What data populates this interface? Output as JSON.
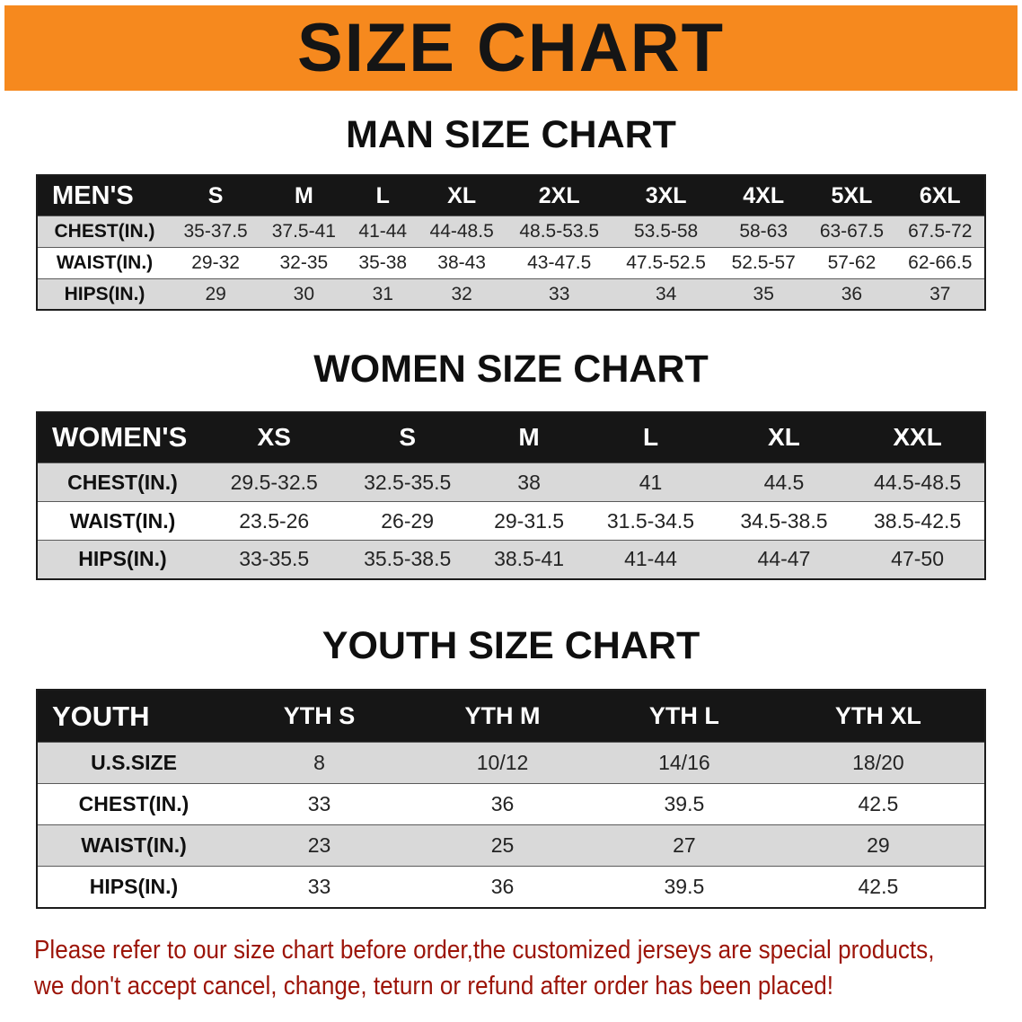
{
  "banner": {
    "title": "SIZE CHART"
  },
  "colors": {
    "banner_orange": "#F6891E",
    "table_header_black": "#161616",
    "row_stripe_gray": "#D9D9D9",
    "notice_red": "#9C1408"
  },
  "chart_data": [
    {
      "type": "table",
      "title": "MAN SIZE CHART",
      "corner_label": "MEN'S",
      "columns": [
        "S",
        "M",
        "L",
        "XL",
        "2XL",
        "3XL",
        "4XL",
        "5XL",
        "6XL"
      ],
      "rows": [
        {
          "label": "CHEST(IN.)",
          "values": [
            "35-37.5",
            "37.5-41",
            "41-44",
            "44-48.5",
            "48.5-53.5",
            "53.5-58",
            "58-63",
            "63-67.5",
            "67.5-72"
          ]
        },
        {
          "label": "WAIST(IN.)",
          "values": [
            "29-32",
            "32-35",
            "35-38",
            "38-43",
            "43-47.5",
            "47.5-52.5",
            "52.5-57",
            "57-62",
            "62-66.5"
          ]
        },
        {
          "label": "HIPS(IN.)",
          "values": [
            "29",
            "30",
            "31",
            "32",
            "33",
            "34",
            "35",
            "36",
            "37"
          ]
        }
      ]
    },
    {
      "type": "table",
      "title": "WOMEN SIZE CHART",
      "corner_label": "WOMEN'S",
      "columns": [
        "XS",
        "S",
        "M",
        "L",
        "XL",
        "XXL"
      ],
      "rows": [
        {
          "label": "CHEST(IN.)",
          "values": [
            "29.5-32.5",
            "32.5-35.5",
            "38",
            "41",
            "44.5",
            "44.5-48.5"
          ]
        },
        {
          "label": "WAIST(IN.)",
          "values": [
            "23.5-26",
            "26-29",
            "29-31.5",
            "31.5-34.5",
            "34.5-38.5",
            "38.5-42.5"
          ]
        },
        {
          "label": "HIPS(IN.)",
          "values": [
            "33-35.5",
            "35.5-38.5",
            "38.5-41",
            "41-44",
            "44-47",
            "47-50"
          ]
        }
      ]
    },
    {
      "type": "table",
      "title": "YOUTH SIZE CHART",
      "corner_label": "YOUTH",
      "columns": [
        "YTH S",
        "YTH M",
        "YTH L",
        "YTH XL"
      ],
      "rows": [
        {
          "label": "U.S.SIZE",
          "values": [
            "8",
            "10/12",
            "14/16",
            "18/20"
          ]
        },
        {
          "label": "CHEST(IN.)",
          "values": [
            "33",
            "36",
            "39.5",
            "42.5"
          ]
        },
        {
          "label": "WAIST(IN.)",
          "values": [
            "23",
            "25",
            "27",
            "29"
          ]
        },
        {
          "label": "HIPS(IN.)",
          "values": [
            "33",
            "36",
            "39.5",
            "42.5"
          ]
        }
      ]
    }
  ],
  "footer": {
    "lines": [
      "Please refer to our size chart before order,the customized jerseys are special products,",
      "we don't accept cancel, change, teturn or refund after order has been placed!"
    ]
  }
}
